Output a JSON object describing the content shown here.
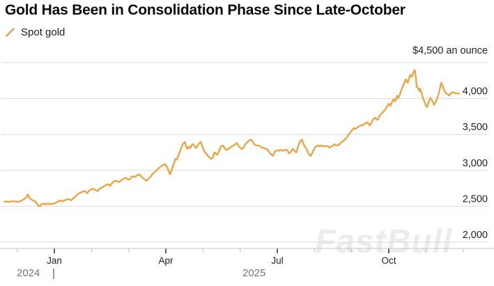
{
  "watermark": "FastBull",
  "colors": {
    "line": "#F0A13C",
    "legend_mark": "#D3A257",
    "grid": "#DCDCDC",
    "axis": "#C4C4C4",
    "tick_major": "#3A3A3A",
    "tick_minor": "#BDBDBD",
    "title": "#0B0B0B",
    "label": "#1F1F1F",
    "muted": "#757575",
    "watermark": "#E9E9E9"
  },
  "chart_data": {
    "type": "line",
    "title": "Gold Has Been in Consolidation Phase Since Late-October",
    "series_name": "Spot gold",
    "unit_label": "$4,500 an ounce",
    "y_unit": "USD per ounce",
    "xlabel": "",
    "ylabel": "",
    "ylim": [
      1900,
      4500
    ],
    "grid": "horizontal",
    "legend_position": "top-left",
    "x_unit": "months_since_2025-01-01",
    "x_range_dates": [
      "2024-11-20",
      "2025-11-28"
    ],
    "y_gridlines": [
      4500,
      4000,
      3500,
      3000,
      2500,
      2000
    ],
    "y_ticks": [
      {
        "value": 4000,
        "label": "4,000"
      },
      {
        "value": 3500,
        "label": "3,500"
      },
      {
        "value": 3000,
        "label": "3,000"
      },
      {
        "value": 2500,
        "label": "2,500"
      },
      {
        "value": 2000,
        "label": "2,000"
      }
    ],
    "x_ticks": [
      {
        "m": -1,
        "label": "",
        "major": false
      },
      {
        "m": 0,
        "label": "Jan",
        "major": true
      },
      {
        "m": 1,
        "label": "",
        "major": false
      },
      {
        "m": 2,
        "label": "",
        "major": false
      },
      {
        "m": 3,
        "label": "Apr",
        "major": true
      },
      {
        "m": 4,
        "label": "",
        "major": false
      },
      {
        "m": 5,
        "label": "",
        "major": false
      },
      {
        "m": 6,
        "label": "Jul",
        "major": true
      },
      {
        "m": 7,
        "label": "",
        "major": false
      },
      {
        "m": 8,
        "label": "",
        "major": false
      },
      {
        "m": 9,
        "label": "Oct",
        "major": true
      },
      {
        "m": 10,
        "label": "",
        "major": false
      },
      {
        "m": 11,
        "label": "",
        "major": false
      }
    ],
    "year_labels": [
      {
        "label": "2024"
      },
      {
        "label": "2025"
      }
    ],
    "points": [
      [
        -1.35,
        2563
      ],
      [
        -1.28,
        2568
      ],
      [
        -1.2,
        2560
      ],
      [
        -1.13,
        2572
      ],
      [
        -1.05,
        2566
      ],
      [
        -0.98,
        2561
      ],
      [
        -0.9,
        2575
      ],
      [
        -0.83,
        2592
      ],
      [
        -0.75,
        2630
      ],
      [
        -0.71,
        2666
      ],
      [
        -0.68,
        2625
      ],
      [
        -0.62,
        2592
      ],
      [
        -0.56,
        2578
      ],
      [
        -0.51,
        2570
      ],
      [
        -0.45,
        2515
      ],
      [
        -0.39,
        2498
      ],
      [
        -0.34,
        2530
      ],
      [
        -0.28,
        2538
      ],
      [
        -0.23,
        2522
      ],
      [
        -0.17,
        2540
      ],
      [
        -0.11,
        2528
      ],
      [
        -0.06,
        2533
      ],
      [
        0.0,
        2542
      ],
      [
        0.08,
        2556
      ],
      [
        0.15,
        2580
      ],
      [
        0.23,
        2571
      ],
      [
        0.3,
        2588
      ],
      [
        0.38,
        2600
      ],
      [
        0.45,
        2582
      ],
      [
        0.53,
        2620
      ],
      [
        0.6,
        2655
      ],
      [
        0.68,
        2686
      ],
      [
        0.75,
        2700
      ],
      [
        0.83,
        2712
      ],
      [
        0.88,
        2680
      ],
      [
        0.94,
        2718
      ],
      [
        0.99,
        2736
      ],
      [
        1.05,
        2742
      ],
      [
        1.11,
        2728
      ],
      [
        1.16,
        2710
      ],
      [
        1.22,
        2746
      ],
      [
        1.28,
        2760
      ],
      [
        1.35,
        2784
      ],
      [
        1.41,
        2800
      ],
      [
        1.46,
        2806
      ],
      [
        1.5,
        2784
      ],
      [
        1.58,
        2838
      ],
      [
        1.63,
        2854
      ],
      [
        1.69,
        2846
      ],
      [
        1.74,
        2838
      ],
      [
        1.82,
        2871
      ],
      [
        1.88,
        2886
      ],
      [
        1.93,
        2894
      ],
      [
        1.99,
        2871
      ],
      [
        2.04,
        2880
      ],
      [
        2.1,
        2920
      ],
      [
        2.16,
        2906
      ],
      [
        2.21,
        2926
      ],
      [
        2.29,
        2944
      ],
      [
        2.34,
        2916
      ],
      [
        2.4,
        2886
      ],
      [
        2.48,
        2854
      ],
      [
        2.53,
        2880
      ],
      [
        2.59,
        2910
      ],
      [
        2.64,
        2950
      ],
      [
        2.7,
        2976
      ],
      [
        2.76,
        3000
      ],
      [
        2.81,
        3032
      ],
      [
        2.87,
        3056
      ],
      [
        2.93,
        3076
      ],
      [
        2.98,
        3088
      ],
      [
        3.04,
        3040
      ],
      [
        3.08,
        2982
      ],
      [
        3.11,
        2946
      ],
      [
        3.15,
        2992
      ],
      [
        3.19,
        3060
      ],
      [
        3.23,
        3112
      ],
      [
        3.26,
        3160
      ],
      [
        3.3,
        3150
      ],
      [
        3.34,
        3210
      ],
      [
        3.38,
        3262
      ],
      [
        3.41,
        3310
      ],
      [
        3.45,
        3356
      ],
      [
        3.51,
        3396
      ],
      [
        3.54,
        3340
      ],
      [
        3.58,
        3298
      ],
      [
        3.62,
        3330
      ],
      [
        3.66,
        3312
      ],
      [
        3.69,
        3348
      ],
      [
        3.73,
        3366
      ],
      [
        3.77,
        3340
      ],
      [
        3.81,
        3312
      ],
      [
        3.84,
        3330
      ],
      [
        3.88,
        3364
      ],
      [
        3.94,
        3396
      ],
      [
        3.98,
        3340
      ],
      [
        4.03,
        3266
      ],
      [
        4.09,
        3230
      ],
      [
        4.13,
        3202
      ],
      [
        4.18,
        3176
      ],
      [
        4.22,
        3160
      ],
      [
        4.26,
        3174
      ],
      [
        4.31,
        3250
      ],
      [
        4.35,
        3230
      ],
      [
        4.39,
        3218
      ],
      [
        4.44,
        3280
      ],
      [
        4.48,
        3330
      ],
      [
        4.54,
        3348
      ],
      [
        4.58,
        3312
      ],
      [
        4.63,
        3282
      ],
      [
        4.69,
        3300
      ],
      [
        4.73,
        3316
      ],
      [
        4.78,
        3330
      ],
      [
        4.82,
        3348
      ],
      [
        4.88,
        3366
      ],
      [
        4.91,
        3380
      ],
      [
        4.97,
        3330
      ],
      [
        5.01,
        3312
      ],
      [
        5.04,
        3298
      ],
      [
        5.1,
        3320
      ],
      [
        5.14,
        3364
      ],
      [
        5.19,
        3390
      ],
      [
        5.23,
        3412
      ],
      [
        5.29,
        3428
      ],
      [
        5.34,
        3400
      ],
      [
        5.38,
        3364
      ],
      [
        5.44,
        3346
      ],
      [
        5.48,
        3348
      ],
      [
        5.53,
        3338
      ],
      [
        5.57,
        3316
      ],
      [
        5.61,
        3316
      ],
      [
        5.66,
        3306
      ],
      [
        5.72,
        3298
      ],
      [
        5.76,
        3270
      ],
      [
        5.81,
        3234
      ],
      [
        5.85,
        3216
      ],
      [
        5.89,
        3202
      ],
      [
        5.94,
        3266
      ],
      [
        6.0,
        3280
      ],
      [
        6.04,
        3270
      ],
      [
        6.09,
        3286
      ],
      [
        6.15,
        3276
      ],
      [
        6.21,
        3280
      ],
      [
        6.26,
        3290
      ],
      [
        6.32,
        3234
      ],
      [
        6.38,
        3266
      ],
      [
        6.41,
        3298
      ],
      [
        6.47,
        3270
      ],
      [
        6.51,
        3250
      ],
      [
        6.54,
        3300
      ],
      [
        6.58,
        3360
      ],
      [
        6.62,
        3412
      ],
      [
        6.66,
        3428
      ],
      [
        6.69,
        3390
      ],
      [
        6.73,
        3340
      ],
      [
        6.79,
        3298
      ],
      [
        6.83,
        3250
      ],
      [
        6.86,
        3218
      ],
      [
        6.9,
        3202
      ],
      [
        6.94,
        3240
      ],
      [
        6.98,
        3280
      ],
      [
        7.01,
        3316
      ],
      [
        7.07,
        3340
      ],
      [
        7.11,
        3348
      ],
      [
        7.14,
        3330
      ],
      [
        7.18,
        3348
      ],
      [
        7.22,
        3340
      ],
      [
        7.26,
        3330
      ],
      [
        7.29,
        3340
      ],
      [
        7.35,
        3336
      ],
      [
        7.41,
        3316
      ],
      [
        7.44,
        3330
      ],
      [
        7.5,
        3346
      ],
      [
        7.54,
        3364
      ],
      [
        7.59,
        3350
      ],
      [
        7.63,
        3348
      ],
      [
        7.69,
        3370
      ],
      [
        7.73,
        3396
      ],
      [
        7.78,
        3410
      ],
      [
        7.82,
        3428
      ],
      [
        7.88,
        3460
      ],
      [
        7.91,
        3492
      ],
      [
        7.97,
        3530
      ],
      [
        8.01,
        3558
      ],
      [
        8.06,
        3590
      ],
      [
        8.1,
        3575
      ],
      [
        8.16,
        3600
      ],
      [
        8.23,
        3622
      ],
      [
        8.29,
        3630
      ],
      [
        8.33,
        3638
      ],
      [
        8.38,
        3656
      ],
      [
        8.42,
        3670
      ],
      [
        8.46,
        3645
      ],
      [
        8.49,
        3622
      ],
      [
        8.53,
        3665
      ],
      [
        8.57,
        3702
      ],
      [
        8.63,
        3734
      ],
      [
        8.66,
        3720
      ],
      [
        8.7,
        3702
      ],
      [
        8.76,
        3768
      ],
      [
        8.81,
        3790
      ],
      [
        8.85,
        3815
      ],
      [
        8.91,
        3850
      ],
      [
        8.94,
        3880
      ],
      [
        9.0,
        3928
      ],
      [
        9.04,
        3896
      ],
      [
        9.08,
        3940
      ],
      [
        9.13,
        3993
      ],
      [
        9.17,
        3960
      ],
      [
        9.23,
        4041
      ],
      [
        9.26,
        4008
      ],
      [
        9.3,
        4060
      ],
      [
        9.34,
        4120
      ],
      [
        9.38,
        4170
      ],
      [
        9.41,
        4203
      ],
      [
        9.45,
        4267
      ],
      [
        9.49,
        4240
      ],
      [
        9.51,
        4219
      ],
      [
        9.55,
        4290
      ],
      [
        9.58,
        4330
      ],
      [
        9.62,
        4300
      ],
      [
        9.66,
        4360
      ],
      [
        9.7,
        4397
      ],
      [
        9.73,
        4280
      ],
      [
        9.75,
        4170
      ],
      [
        9.79,
        4140
      ],
      [
        9.83,
        4105
      ],
      [
        9.84,
        4138
      ],
      [
        9.88,
        4080
      ],
      [
        9.92,
        4010
      ],
      [
        9.96,
        3955
      ],
      [
        10.0,
        3900
      ],
      [
        10.03,
        3880
      ],
      [
        10.07,
        3940
      ],
      [
        10.11,
        4008
      ],
      [
        10.15,
        3985
      ],
      [
        10.18,
        3960
      ],
      [
        10.22,
        3912
      ],
      [
        10.26,
        3950
      ],
      [
        10.3,
        4000
      ],
      [
        10.33,
        4041
      ],
      [
        10.37,
        4120
      ],
      [
        10.41,
        4219
      ],
      [
        10.45,
        4180
      ],
      [
        10.48,
        4120
      ],
      [
        10.52,
        4090
      ],
      [
        10.56,
        4065
      ],
      [
        10.6,
        4057
      ],
      [
        10.63,
        4041
      ],
      [
        10.67,
        4070
      ],
      [
        10.71,
        4090
      ],
      [
        10.74,
        4085
      ],
      [
        10.78,
        4075
      ],
      [
        10.82,
        4073
      ],
      [
        10.86,
        4070
      ],
      [
        10.89,
        4068
      ]
    ]
  }
}
